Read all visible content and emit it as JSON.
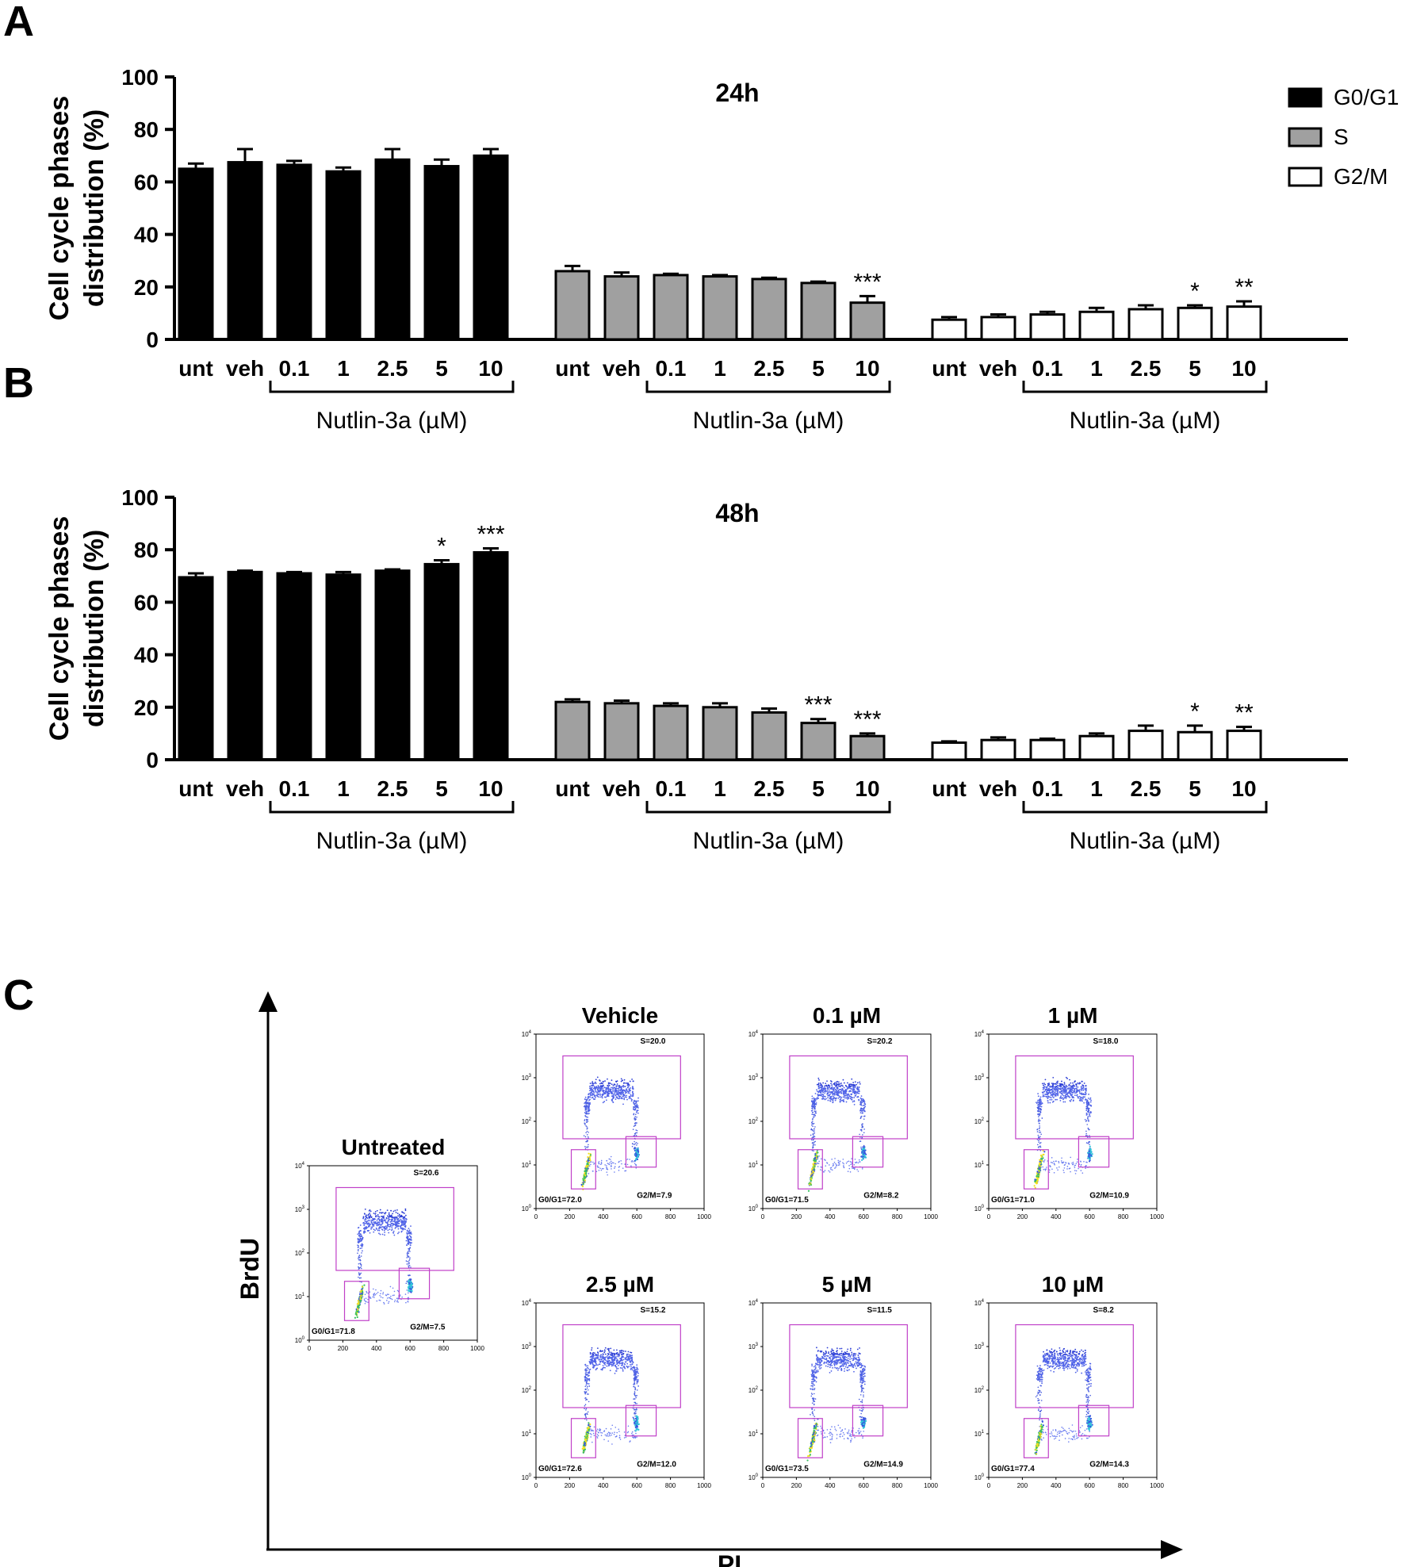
{
  "panels": {
    "A": "A",
    "B": "B",
    "C": "C"
  },
  "ylabel": "Cell cycle phases distribution (%)",
  "ylabel_lines": [
    "Cell cycle phases",
    "distribution (%)"
  ],
  "tick_labels": [
    "unt",
    "veh",
    "0.1",
    "1",
    "2.5",
    "5",
    "10"
  ],
  "bracket_label": "Nutlin-3a (µM)",
  "legend": [
    {
      "label": "G0/G1",
      "color": "#000000"
    },
    {
      "label": "S",
      "color": "#a0a0a0"
    },
    {
      "label": "G2/M",
      "color": "#ffffff"
    }
  ],
  "chart_data": [
    {
      "type": "bar",
      "title": "24h",
      "ylim": [
        0,
        100
      ],
      "yticks": [
        0,
        20,
        40,
        60,
        80,
        100
      ],
      "categories": [
        "unt",
        "veh",
        "0.1",
        "1",
        "2.5",
        "5",
        "10"
      ],
      "series": [
        {
          "name": "G0/G1",
          "color": "#000000",
          "values": [
            65,
            67.5,
            66.5,
            64,
            68.5,
            66,
            70
          ],
          "errors": [
            2,
            5,
            1.5,
            1.5,
            4,
            2.5,
            2.5
          ],
          "sig": [
            "",
            "",
            "",
            "",
            "",
            "",
            ""
          ]
        },
        {
          "name": "S",
          "color": "#a0a0a0",
          "values": [
            26,
            24,
            24.5,
            24,
            23,
            21.5,
            14
          ],
          "errors": [
            2,
            1.5,
            0.5,
            0.5,
            0.5,
            0.5,
            2.5
          ],
          "sig": [
            "",
            "",
            "",
            "",
            "",
            "",
            "***"
          ]
        },
        {
          "name": "G2/M",
          "color": "#ffffff",
          "values": [
            7.5,
            8.5,
            9.5,
            10.5,
            11.5,
            12,
            12.5
          ],
          "errors": [
            1,
            1,
            1,
            1.5,
            1.5,
            1,
            2
          ],
          "sig": [
            "",
            "",
            "",
            "",
            "",
            "*",
            "**"
          ]
        }
      ]
    },
    {
      "type": "bar",
      "title": "48h",
      "ylim": [
        0,
        100
      ],
      "yticks": [
        0,
        20,
        40,
        60,
        80,
        100
      ],
      "categories": [
        "unt",
        "veh",
        "0.1",
        "1",
        "2.5",
        "5",
        "10"
      ],
      "series": [
        {
          "name": "G0/G1",
          "color": "#000000",
          "values": [
            69.5,
            71.5,
            71,
            70.5,
            72,
            74.5,
            79
          ],
          "errors": [
            1.5,
            0.5,
            0.5,
            1,
            0.5,
            1.5,
            1.5
          ],
          "sig": [
            "",
            "",
            "",
            "",
            "",
            "*",
            "***"
          ]
        },
        {
          "name": "S",
          "color": "#a0a0a0",
          "values": [
            22,
            21.5,
            20.5,
            20,
            18,
            14,
            9
          ],
          "errors": [
            1,
            1,
            1,
            1.5,
            1.5,
            1.5,
            1
          ],
          "sig": [
            "",
            "",
            "",
            "",
            "",
            "***",
            "***"
          ]
        },
        {
          "name": "G2/M",
          "color": "#ffffff",
          "values": [
            6.5,
            7.5,
            7.5,
            9,
            11,
            10.5,
            11
          ],
          "errors": [
            0.5,
            1,
            0.5,
            1,
            2,
            2.5,
            1.5
          ],
          "sig": [
            "",
            "",
            "",
            "",
            "",
            "*",
            "**"
          ]
        }
      ]
    }
  ],
  "flow": {
    "ylabel": "BrdU",
    "xlabel": "PI",
    "x_ticks": [
      "0",
      "200",
      "400",
      "600",
      "800",
      "1000"
    ],
    "y_ticks": [
      "10",
      "10",
      "10",
      "10",
      "10"
    ],
    "y_exps": [
      "0",
      "1",
      "2",
      "3",
      "4"
    ],
    "plots": [
      {
        "title": "Untreated",
        "S": "S=20.6",
        "G0G1": "G0/G1=71.8",
        "G2M": "G2/M=7.5"
      },
      {
        "title": "Vehicle",
        "S": "S=20.0",
        "G0G1": "G0/G1=72.0",
        "G2M": "G2/M=7.9"
      },
      {
        "title": "0.1 µM",
        "S": "S=20.2",
        "G0G1": "G0/G1=71.5",
        "G2M": "G2/M=8.2"
      },
      {
        "title": "1 µM",
        "S": "S=18.0",
        "G0G1": "G0/G1=71.0",
        "G2M": "G2/M=10.9"
      },
      {
        "title": "2.5 µM",
        "S": "S=15.2",
        "G0G1": "G0/G1=72.6",
        "G2M": "G2/M=12.0"
      },
      {
        "title": "5 µM",
        "S": "S=11.5",
        "G0G1": "G0/G1=73.5",
        "G2M": "G2/M=14.9"
      },
      {
        "title": "10 µM",
        "S": "S=8.2",
        "G0G1": "G0/G1=77.4",
        "G2M": "G2/M=14.3"
      }
    ]
  }
}
